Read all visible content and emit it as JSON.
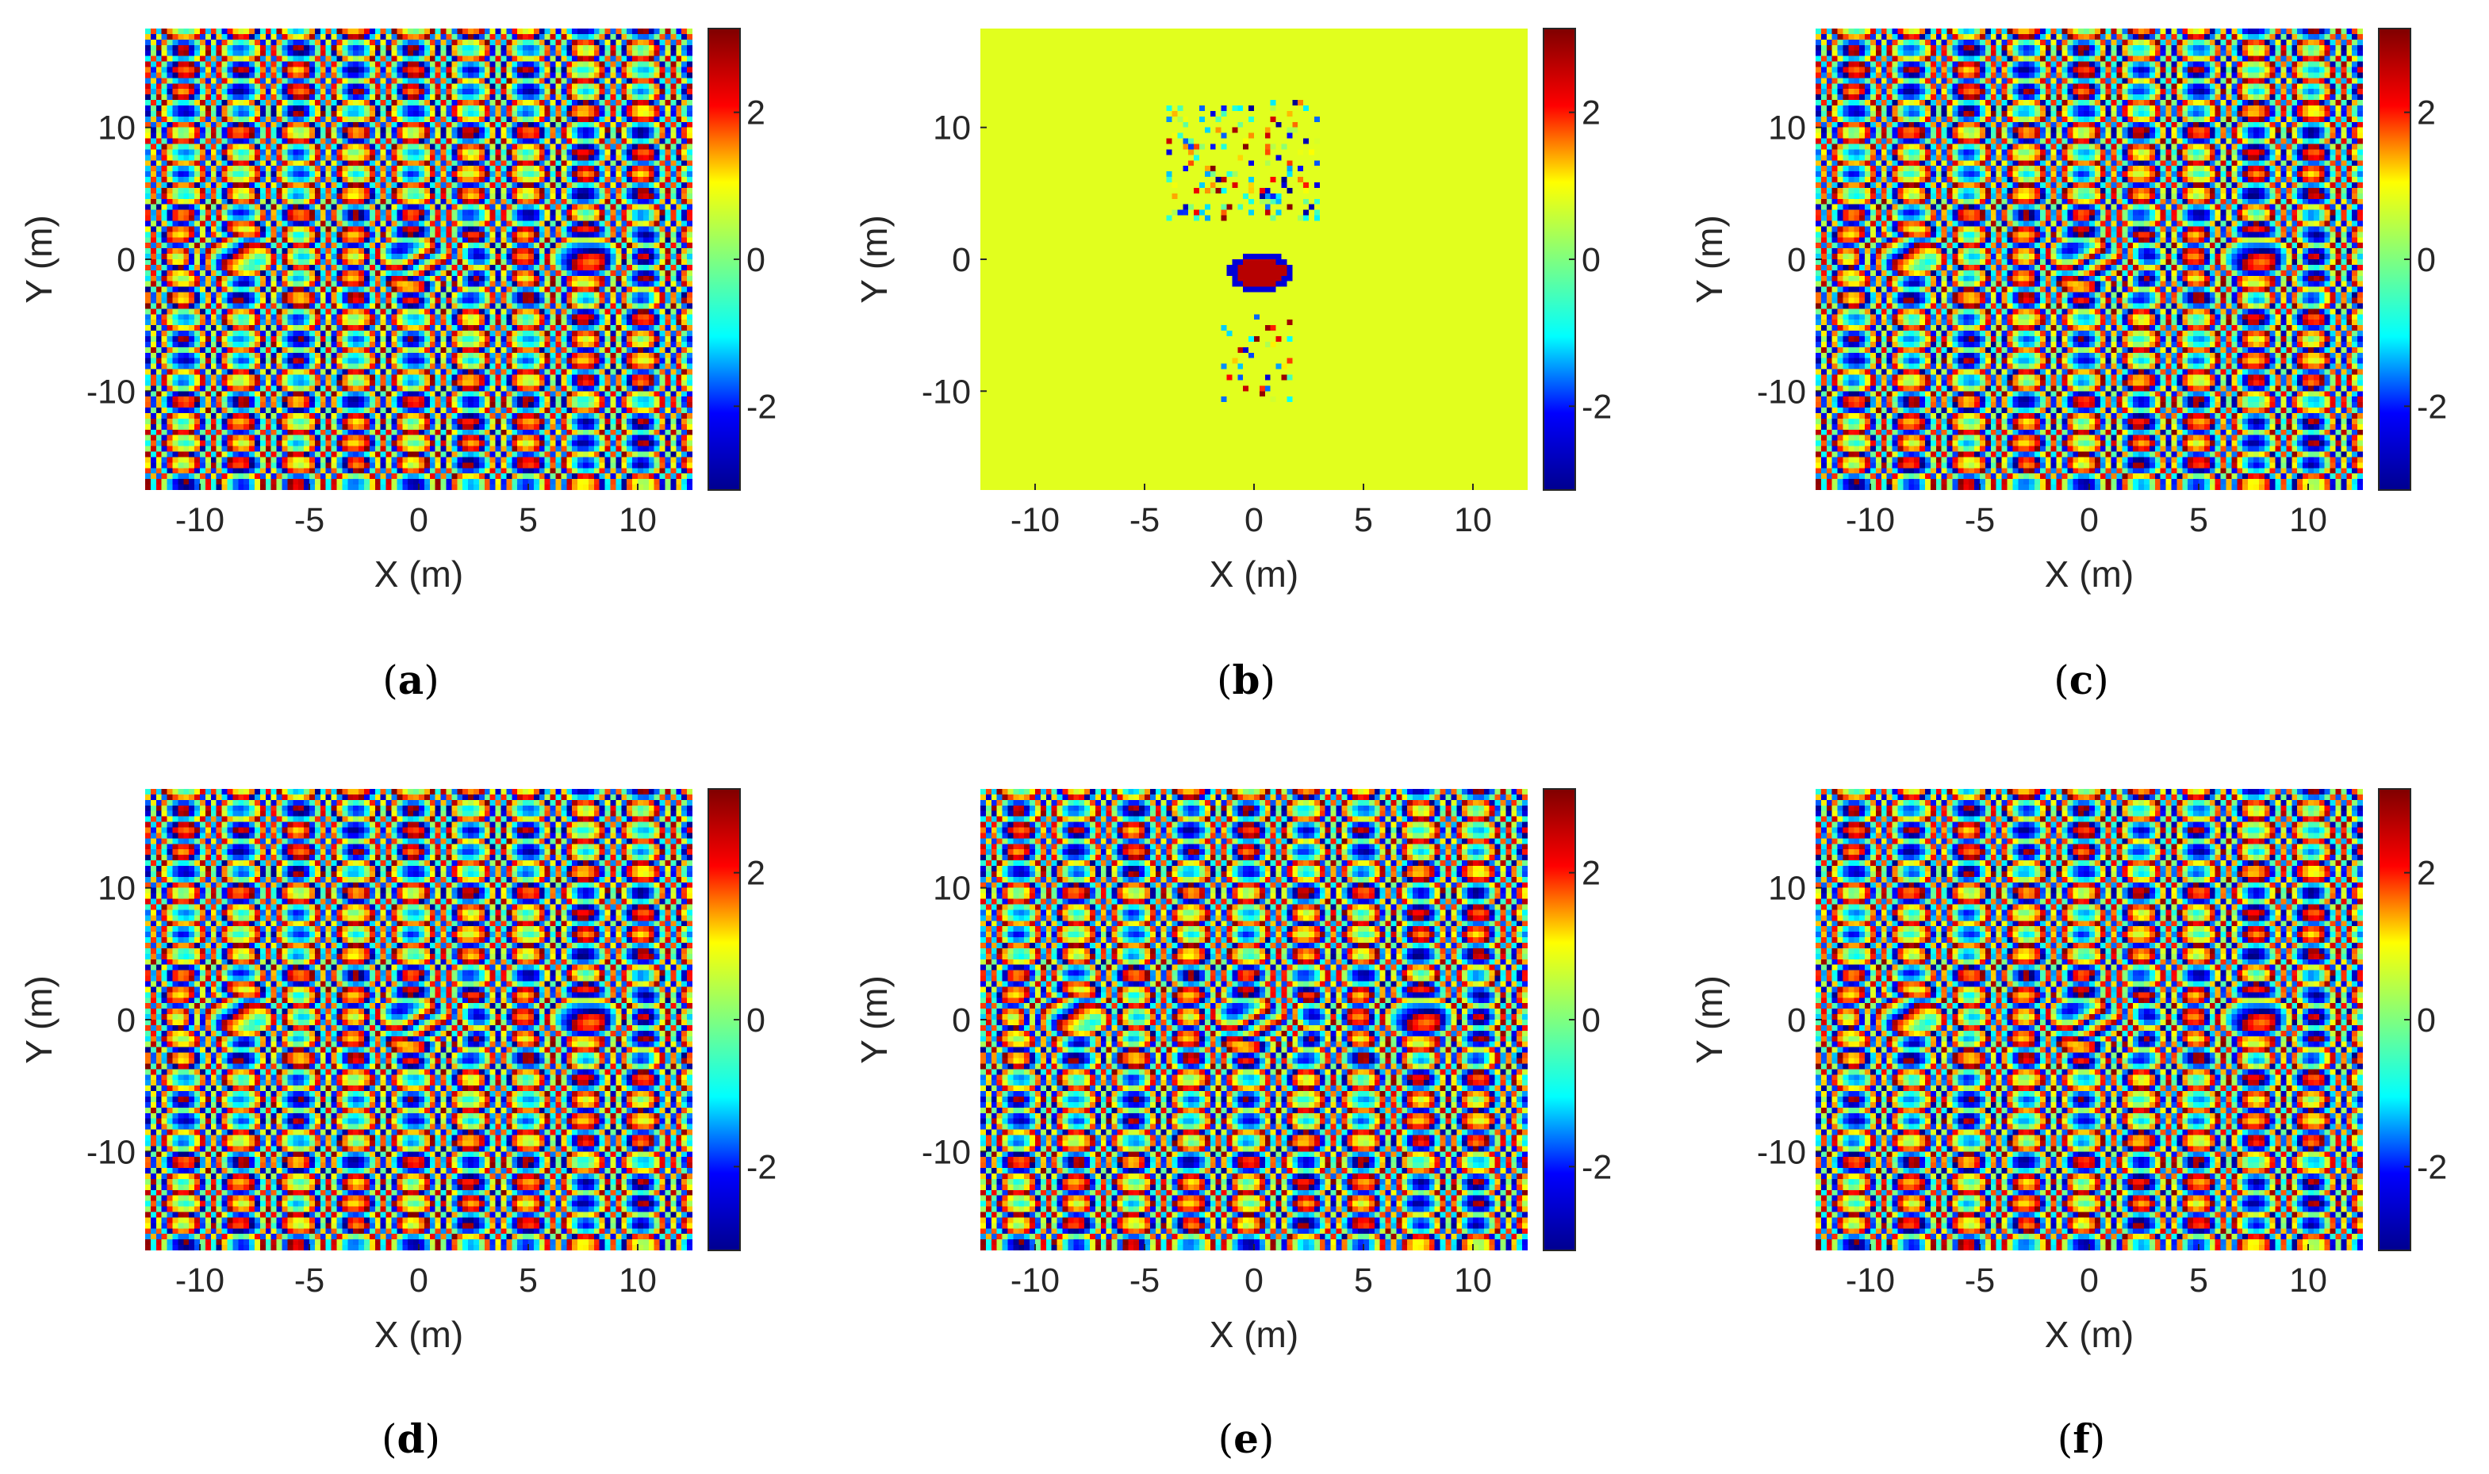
{
  "figure": {
    "colormap": "jet",
    "colormap_stops": [
      "#00008f",
      "#0000ff",
      "#00ffff",
      "#7fff7f",
      "#ffff00",
      "#ff0000",
      "#7f0000"
    ]
  },
  "chart_data": [
    {
      "type": "heatmap",
      "panel": "a",
      "caption_letter": "a",
      "content": "wrapped-phase",
      "xlabel": "X (m)",
      "ylabel": "Y (m)",
      "xlim": [
        -12.5,
        12.5
      ],
      "ylim": [
        -17.5,
        17.5
      ],
      "xticks": [
        -10,
        -5,
        0,
        5,
        10
      ],
      "xtick_labels": [
        "-10",
        "-5",
        "0",
        "5",
        "10"
      ],
      "yticks": [
        -10,
        0,
        10
      ],
      "ytick_labels": [
        "-10",
        "0",
        "10"
      ],
      "clim": [
        -3.14,
        3.14
      ],
      "cbar_ticks": [
        -2,
        0,
        2
      ],
      "cbar_tick_labels": [
        "-2",
        "0",
        "2"
      ],
      "sources": [
        {
          "x": -8.5,
          "y": 0.5,
          "peak": 2.6
        },
        {
          "x": 0.2,
          "y": -0.3,
          "peak": 2.9
        },
        {
          "x": 7.5,
          "y": 0.4,
          "peak": 2.2
        }
      ]
    },
    {
      "type": "heatmap",
      "panel": "b",
      "caption_letter": "b",
      "content": "sparse-blob",
      "background_value": 0.6,
      "xlabel": "X (m)",
      "ylabel": "Y (m)",
      "xlim": [
        -12.5,
        12.5
      ],
      "ylim": [
        -17.5,
        17.5
      ],
      "xticks": [
        -10,
        -5,
        0,
        5,
        10
      ],
      "xtick_labels": [
        "-10",
        "-5",
        "0",
        "5",
        "10"
      ],
      "yticks": [
        -10,
        0,
        10
      ],
      "ytick_labels": [
        "-10",
        "0",
        "10"
      ],
      "clim": [
        -3.14,
        3.14
      ],
      "cbar_ticks": [
        -2,
        0,
        2
      ],
      "cbar_tick_labels": [
        "-2",
        "0",
        "2"
      ],
      "sources": [
        {
          "x": 0.3,
          "y": -1.0,
          "peak": 2.8
        }
      ]
    },
    {
      "type": "heatmap",
      "panel": "c",
      "caption_letter": "c",
      "content": "wrapped-phase",
      "xlabel": "X (m)",
      "ylabel": "Y (m)",
      "xlim": [
        -12.5,
        12.5
      ],
      "ylim": [
        -17.5,
        17.5
      ],
      "xticks": [
        -10,
        -5,
        0,
        5,
        10
      ],
      "xtick_labels": [
        "-10",
        "-5",
        "0",
        "5",
        "10"
      ],
      "yticks": [
        -10,
        0,
        10
      ],
      "ytick_labels": [
        "-10",
        "0",
        "10"
      ],
      "clim": [
        -3.14,
        3.14
      ],
      "cbar_ticks": [
        -2,
        0,
        2
      ],
      "cbar_tick_labels": [
        "-2",
        "0",
        "2"
      ],
      "sources": [
        {
          "x": -8.5,
          "y": 0.5,
          "peak": 2.6
        },
        {
          "x": 0.2,
          "y": -0.3,
          "peak": 2.9
        },
        {
          "x": 7.5,
          "y": 0.4,
          "peak": 2.2
        }
      ]
    },
    {
      "type": "heatmap",
      "panel": "d",
      "caption_letter": "d",
      "content": "wrapped-phase",
      "xlabel": "X (m)",
      "ylabel": "Y (m)",
      "xlim": [
        -12.5,
        12.5
      ],
      "ylim": [
        -17.5,
        17.5
      ],
      "xticks": [
        -10,
        -5,
        0,
        5,
        10
      ],
      "xtick_labels": [
        "-10",
        "-5",
        "0",
        "5",
        "10"
      ],
      "yticks": [
        -10,
        0,
        10
      ],
      "ytick_labels": [
        "-10",
        "0",
        "10"
      ],
      "clim": [
        -3.14,
        3.14
      ],
      "cbar_ticks": [
        -2,
        0,
        2
      ],
      "cbar_tick_labels": [
        "-2",
        "0",
        "2"
      ],
      "sources": [
        {
          "x": -8.5,
          "y": 0.5,
          "peak": 2.6
        },
        {
          "x": 0.2,
          "y": -0.3,
          "peak": 2.9
        },
        {
          "x": 7.5,
          "y": 0.4,
          "peak": 2.2
        }
      ]
    },
    {
      "type": "heatmap",
      "panel": "e",
      "caption_letter": "e",
      "content": "wrapped-phase",
      "xlabel": "X (m)",
      "ylabel": "Y (m)",
      "xlim": [
        -12.5,
        12.5
      ],
      "ylim": [
        -17.5,
        17.5
      ],
      "xticks": [
        -10,
        -5,
        0,
        5,
        10
      ],
      "xtick_labels": [
        "-10",
        "-5",
        "0",
        "5",
        "10"
      ],
      "yticks": [
        -10,
        0,
        10
      ],
      "ytick_labels": [
        "-10",
        "0",
        "10"
      ],
      "clim": [
        -3.14,
        3.14
      ],
      "cbar_ticks": [
        -2,
        0,
        2
      ],
      "cbar_tick_labels": [
        "-2",
        "0",
        "2"
      ],
      "sources": [
        {
          "x": -8.5,
          "y": 0.5,
          "peak": 2.6
        },
        {
          "x": 0.2,
          "y": -0.3,
          "peak": 2.9
        },
        {
          "x": 7.5,
          "y": 0.4,
          "peak": 2.2
        }
      ]
    },
    {
      "type": "heatmap",
      "panel": "f",
      "caption_letter": "f",
      "content": "wrapped-phase",
      "xlabel": "X (m)",
      "ylabel": "Y (m)",
      "xlim": [
        -12.5,
        12.5
      ],
      "ylim": [
        -17.5,
        17.5
      ],
      "xticks": [
        -10,
        -5,
        0,
        5,
        10
      ],
      "xtick_labels": [
        "-10",
        "-5",
        "0",
        "5",
        "10"
      ],
      "yticks": [
        -10,
        0,
        10
      ],
      "ytick_labels": [
        "-10",
        "0",
        "10"
      ],
      "clim": [
        -3.14,
        3.14
      ],
      "cbar_ticks": [
        -2,
        0,
        2
      ],
      "cbar_tick_labels": [
        "-2",
        "0",
        "2"
      ],
      "sources": [
        {
          "x": -8.5,
          "y": 0.5,
          "peak": 2.6
        },
        {
          "x": 0.2,
          "y": -0.3,
          "peak": 2.9
        },
        {
          "x": 7.5,
          "y": 0.4,
          "peak": 2.2
        }
      ]
    }
  ]
}
